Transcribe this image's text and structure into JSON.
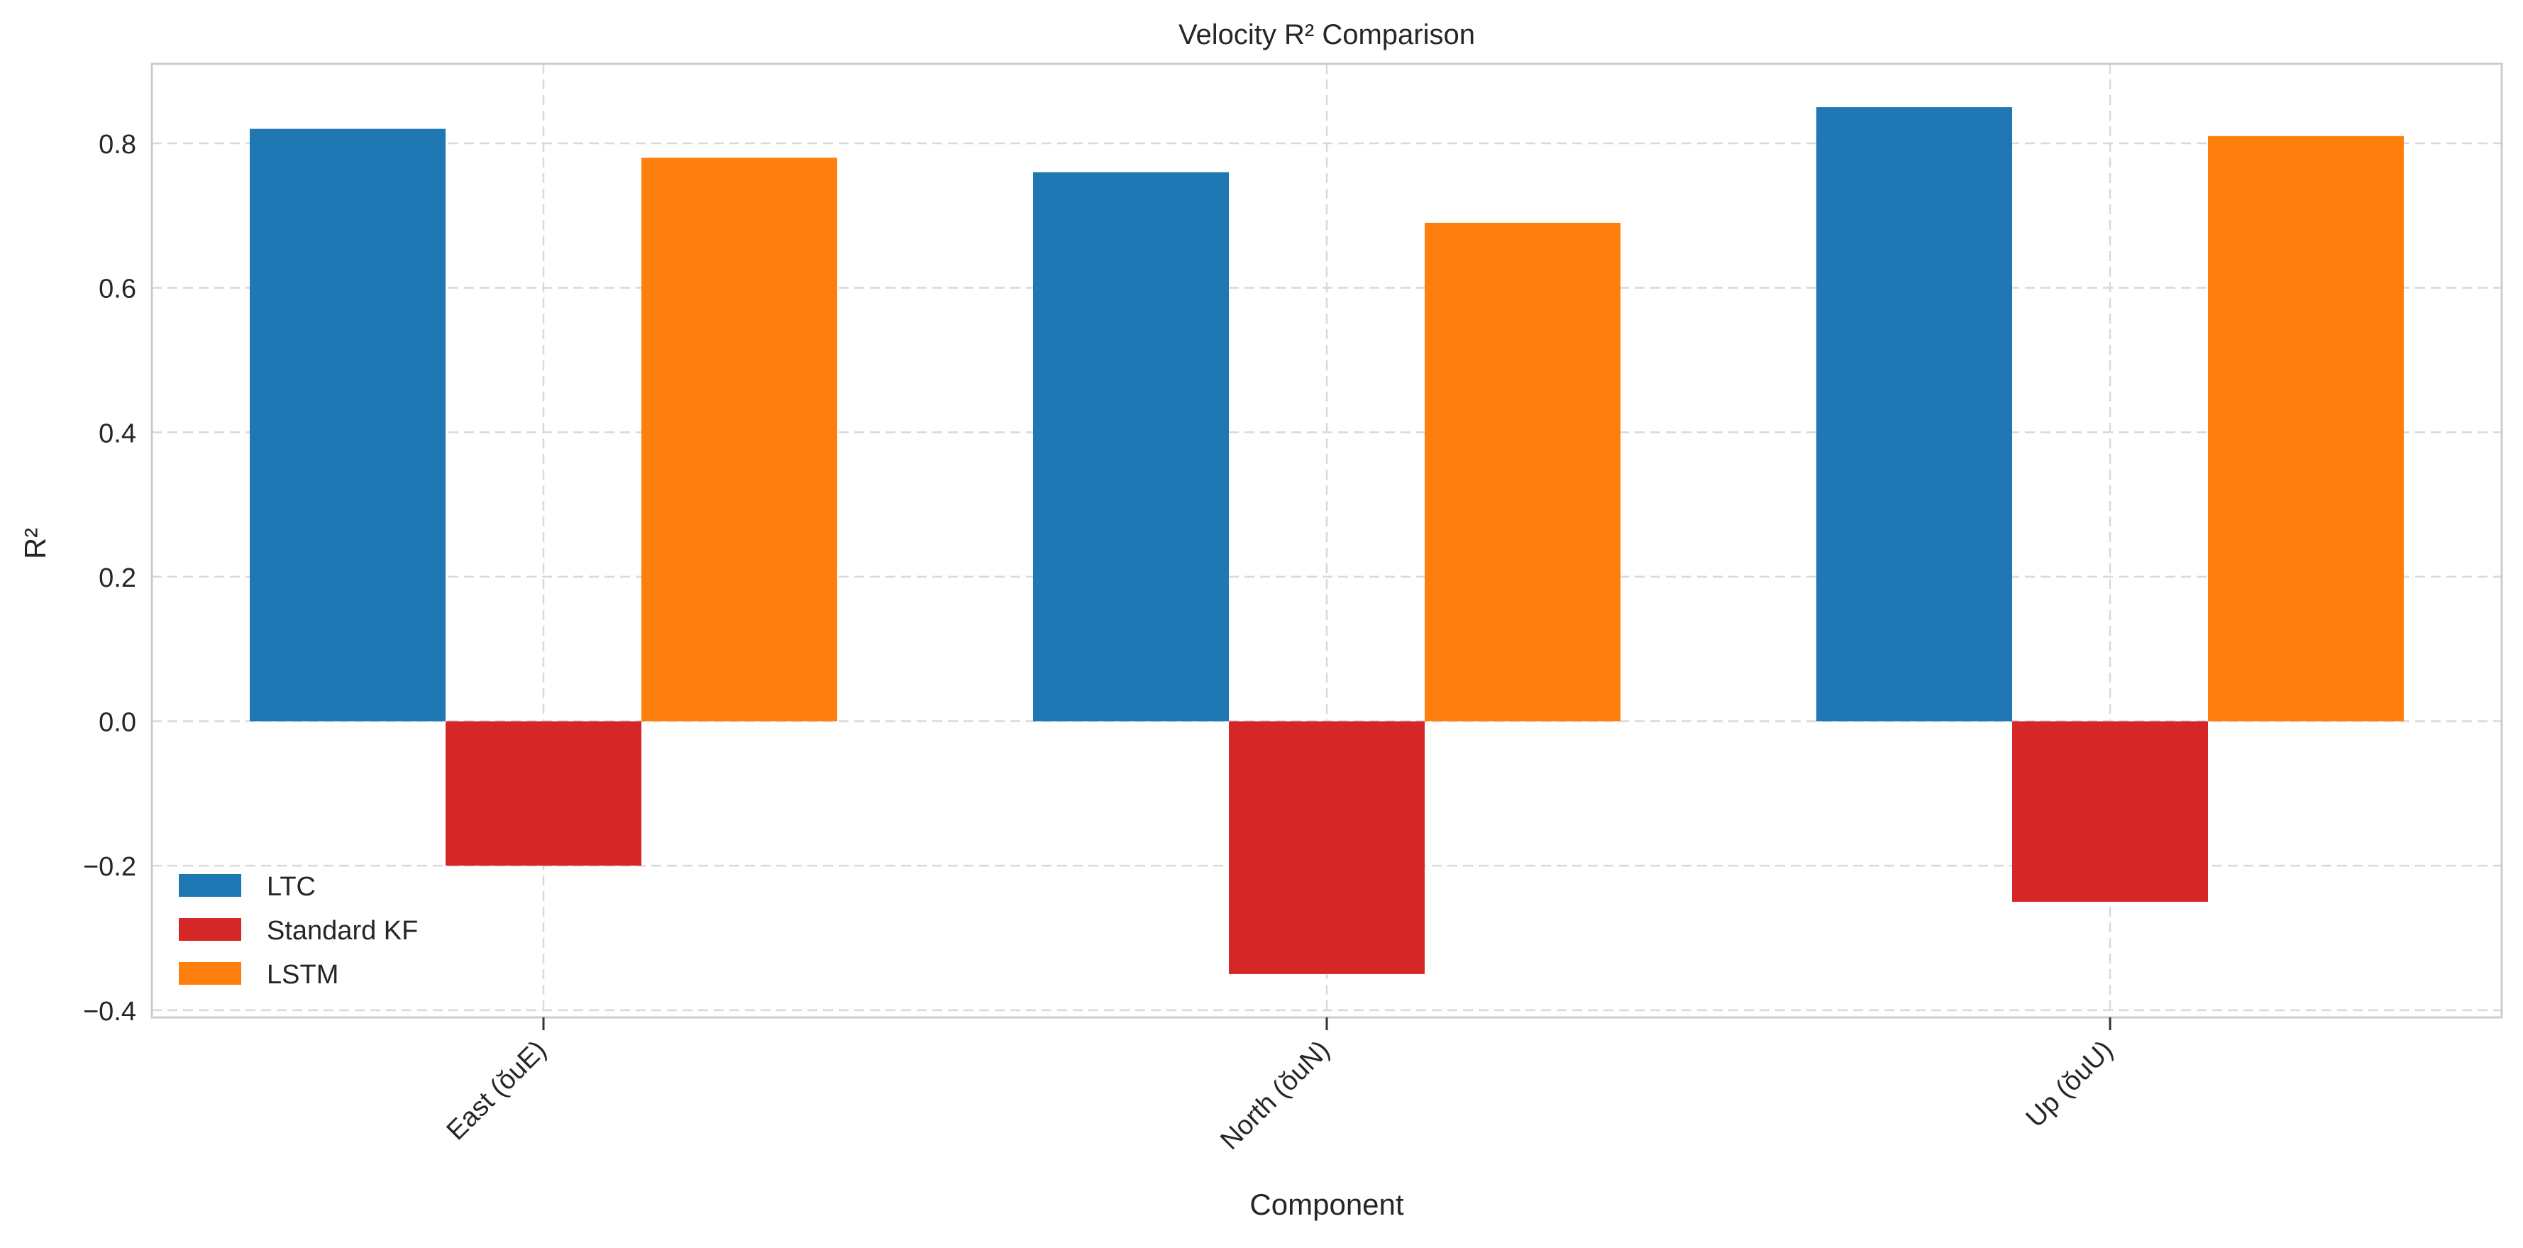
{
  "chart_data": {
    "type": "bar",
    "title": "Velocity R² Comparison",
    "xlabel": "Component",
    "ylabel": "R²",
    "categories": [
      "East (ŏuE)",
      "North (ŏuN)",
      "Up (ŏuU)"
    ],
    "series": [
      {
        "name": "LTC",
        "color": "#1f77b4",
        "values": [
          0.82,
          0.76,
          0.85
        ]
      },
      {
        "name": "Standard KF",
        "color": "#d62728",
        "values": [
          -0.2,
          -0.35,
          -0.25
        ]
      },
      {
        "name": "LSTM",
        "color": "#ff7f0e",
        "values": [
          0.78,
          0.69,
          0.81
        ]
      }
    ],
    "ylim": [
      -0.41,
      0.91
    ],
    "yticks": [
      -0.4,
      -0.2,
      0.0,
      0.2,
      0.4,
      0.6,
      0.8
    ],
    "ytick_labels": [
      "−0.4",
      "−0.2",
      "0.0",
      "0.2",
      "0.4",
      "0.6",
      "0.8"
    ],
    "grid": true,
    "legend_position": "lower-left"
  }
}
